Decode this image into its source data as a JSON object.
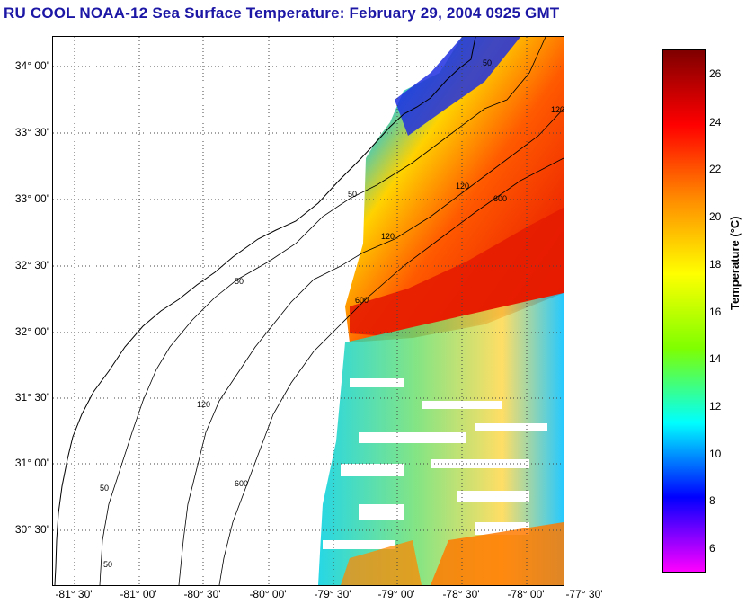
{
  "title": "RU COOL  NOAA-12  Sea Surface Temperature:  February 29, 2004 0925 GMT",
  "map": {
    "lat_labels": [
      "34° 00'",
      "33° 30'",
      "33° 00'",
      "32° 30'",
      "32° 00'",
      "31° 30'",
      "31° 00'",
      "30° 30'"
    ],
    "lon_labels": [
      "-81° 30'",
      "-81° 00'",
      "-80° 30'",
      "-80° 00'",
      "-79° 30'",
      "-79° 00'",
      "-78° 30'",
      "-78° 00'",
      "-77° 30'"
    ],
    "contour_labels": [
      "50",
      "120",
      "600",
      "50",
      "120",
      "600",
      "50",
      "120",
      "600",
      "50",
      "50",
      "120"
    ]
  },
  "colorbar": {
    "label": "Temperature (°C)",
    "ticks": [
      "26",
      "24",
      "22",
      "20",
      "18",
      "16",
      "14",
      "12",
      "10",
      "8",
      "6"
    ],
    "min": 5,
    "max": 27,
    "colors": [
      "#ff00ff",
      "#0000ff",
      "#00ffff",
      "#7fff00",
      "#ffff00",
      "#ff8c00",
      "#ff0000",
      "#7f0000"
    ]
  }
}
